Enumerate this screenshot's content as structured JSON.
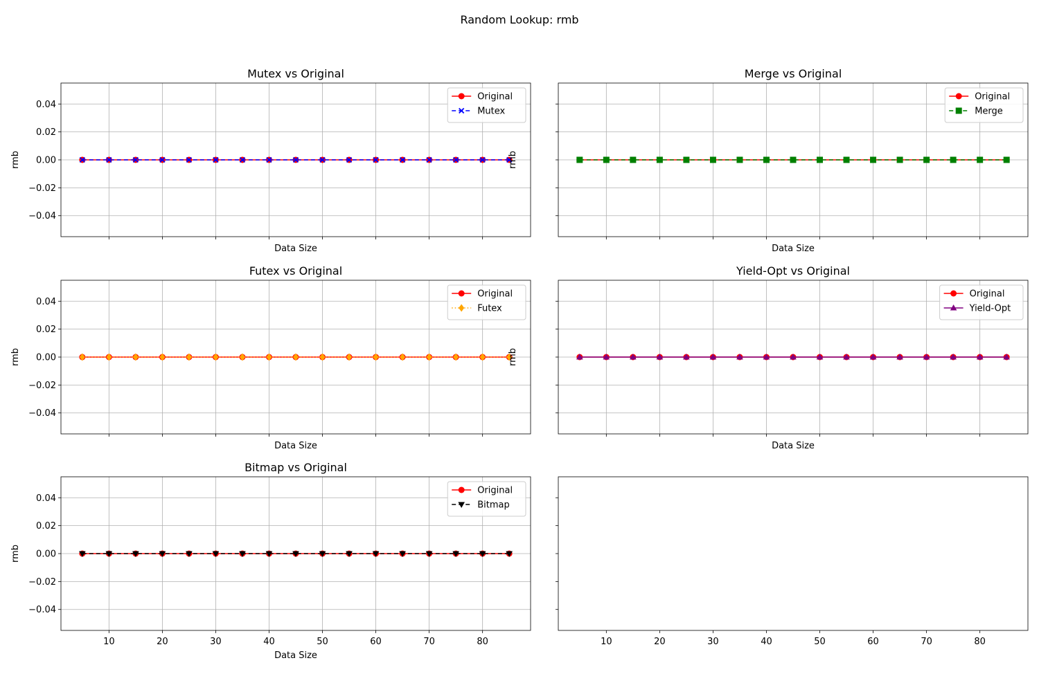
{
  "suptitle": "Random Lookup: rmb",
  "chart_data": [
    {
      "type": "line",
      "title": "Mutex vs Original",
      "xlabel": "Data Size",
      "ylabel": "rmb",
      "x": [
        5,
        10,
        15,
        20,
        25,
        30,
        35,
        40,
        45,
        50,
        55,
        60,
        65,
        70,
        75,
        80,
        85
      ],
      "xlim": [
        1,
        89
      ],
      "ylim": [
        -0.055,
        0.055
      ],
      "yticks": [
        -0.04,
        -0.02,
        0.0,
        0.02,
        0.04
      ],
      "xticks": [
        10,
        20,
        30,
        40,
        50,
        60,
        70,
        80
      ],
      "show_xtick_labels": false,
      "grid": true,
      "legend": "top-right",
      "series": [
        {
          "name": "Original",
          "color": "#ff0000",
          "marker": "circle",
          "linestyle": "solid",
          "values": [
            0,
            0,
            0,
            0,
            0,
            0,
            0,
            0,
            0,
            0,
            0,
            0,
            0,
            0,
            0,
            0,
            0
          ]
        },
        {
          "name": "Mutex",
          "color": "#0000ff",
          "marker": "x",
          "linestyle": "dashed",
          "values": [
            0,
            0,
            0,
            0,
            0,
            0,
            0,
            0,
            0,
            0,
            0,
            0,
            0,
            0,
            0,
            0,
            0
          ]
        }
      ]
    },
    {
      "type": "line",
      "title": "Merge vs Original",
      "xlabel": "Data Size",
      "ylabel": "rmb",
      "x": [
        5,
        10,
        15,
        20,
        25,
        30,
        35,
        40,
        45,
        50,
        55,
        60,
        65,
        70,
        75,
        80,
        85
      ],
      "xlim": [
        1,
        89
      ],
      "ylim": [
        -0.055,
        0.055
      ],
      "yticks": [
        -0.04,
        -0.02,
        0.0,
        0.02,
        0.04
      ],
      "xticks": [
        10,
        20,
        30,
        40,
        50,
        60,
        70,
        80
      ],
      "show_xtick_labels": false,
      "show_ytick_labels": false,
      "grid": true,
      "legend": "top-right",
      "series": [
        {
          "name": "Original",
          "color": "#ff0000",
          "marker": "circle",
          "linestyle": "solid",
          "values": [
            0,
            0,
            0,
            0,
            0,
            0,
            0,
            0,
            0,
            0,
            0,
            0,
            0,
            0,
            0,
            0,
            0
          ]
        },
        {
          "name": "Merge",
          "color": "#008000",
          "marker": "square",
          "linestyle": "dashed",
          "values": [
            0,
            0,
            0,
            0,
            0,
            0,
            0,
            0,
            0,
            0,
            0,
            0,
            0,
            0,
            0,
            0,
            0
          ]
        }
      ]
    },
    {
      "type": "line",
      "title": "Futex vs Original",
      "xlabel": "Data Size",
      "ylabel": "rmb",
      "x": [
        5,
        10,
        15,
        20,
        25,
        30,
        35,
        40,
        45,
        50,
        55,
        60,
        65,
        70,
        75,
        80,
        85
      ],
      "xlim": [
        1,
        89
      ],
      "ylim": [
        -0.055,
        0.055
      ],
      "yticks": [
        -0.04,
        -0.02,
        0.0,
        0.02,
        0.04
      ],
      "xticks": [
        10,
        20,
        30,
        40,
        50,
        60,
        70,
        80
      ],
      "show_xtick_labels": false,
      "grid": true,
      "legend": "top-right",
      "series": [
        {
          "name": "Original",
          "color": "#ff0000",
          "marker": "circle",
          "linestyle": "solid",
          "values": [
            0,
            0,
            0,
            0,
            0,
            0,
            0,
            0,
            0,
            0,
            0,
            0,
            0,
            0,
            0,
            0,
            0
          ]
        },
        {
          "name": "Futex",
          "color": "#ffa500",
          "marker": "diamond",
          "linestyle": "dotted",
          "values": [
            0,
            0,
            0,
            0,
            0,
            0,
            0,
            0,
            0,
            0,
            0,
            0,
            0,
            0,
            0,
            0,
            0
          ]
        }
      ]
    },
    {
      "type": "line",
      "title": "Yield-Opt vs Original",
      "xlabel": "Data Size",
      "ylabel": "rmb",
      "x": [
        5,
        10,
        15,
        20,
        25,
        30,
        35,
        40,
        45,
        50,
        55,
        60,
        65,
        70,
        75,
        80,
        85
      ],
      "xlim": [
        1,
        89
      ],
      "ylim": [
        -0.055,
        0.055
      ],
      "yticks": [
        -0.04,
        -0.02,
        0.0,
        0.02,
        0.04
      ],
      "xticks": [
        10,
        20,
        30,
        40,
        50,
        60,
        70,
        80
      ],
      "show_xtick_labels": false,
      "show_ytick_labels": false,
      "grid": true,
      "legend": "top-right",
      "series": [
        {
          "name": "Original",
          "color": "#ff0000",
          "marker": "circle",
          "linestyle": "solid",
          "values": [
            0,
            0,
            0,
            0,
            0,
            0,
            0,
            0,
            0,
            0,
            0,
            0,
            0,
            0,
            0,
            0,
            0
          ]
        },
        {
          "name": "Yield-Opt",
          "color": "#800080",
          "marker": "triangle-up",
          "linestyle": "solid",
          "values": [
            0,
            0,
            0,
            0,
            0,
            0,
            0,
            0,
            0,
            0,
            0,
            0,
            0,
            0,
            0,
            0,
            0
          ]
        }
      ]
    },
    {
      "type": "line",
      "title": "Bitmap vs Original",
      "xlabel": "Data Size",
      "ylabel": "rmb",
      "x": [
        5,
        10,
        15,
        20,
        25,
        30,
        35,
        40,
        45,
        50,
        55,
        60,
        65,
        70,
        75,
        80,
        85
      ],
      "xlim": [
        1,
        89
      ],
      "ylim": [
        -0.055,
        0.055
      ],
      "yticks": [
        -0.04,
        -0.02,
        0.0,
        0.02,
        0.04
      ],
      "xticks": [
        10,
        20,
        30,
        40,
        50,
        60,
        70,
        80
      ],
      "show_xtick_labels": true,
      "grid": true,
      "legend": "top-right",
      "series": [
        {
          "name": "Original",
          "color": "#ff0000",
          "marker": "circle",
          "linestyle": "solid",
          "values": [
            0,
            0,
            0,
            0,
            0,
            0,
            0,
            0,
            0,
            0,
            0,
            0,
            0,
            0,
            0,
            0,
            0
          ]
        },
        {
          "name": "Bitmap",
          "color": "#000000",
          "marker": "triangle-down",
          "linestyle": "dashed",
          "values": [
            0,
            0,
            0,
            0,
            0,
            0,
            0,
            0,
            0,
            0,
            0,
            0,
            0,
            0,
            0,
            0,
            0
          ]
        }
      ]
    },
    {
      "type": "line",
      "title": "",
      "xlabel": "",
      "ylabel": "",
      "x": [],
      "xlim": [
        1,
        89
      ],
      "ylim": [
        -0.055,
        0.055
      ],
      "yticks": [
        -0.04,
        -0.02,
        0.0,
        0.02,
        0.04
      ],
      "xticks": [
        10,
        20,
        30,
        40,
        50,
        60,
        70,
        80
      ],
      "show_xtick_labels": true,
      "show_ytick_labels": false,
      "grid": false,
      "series": []
    }
  ]
}
